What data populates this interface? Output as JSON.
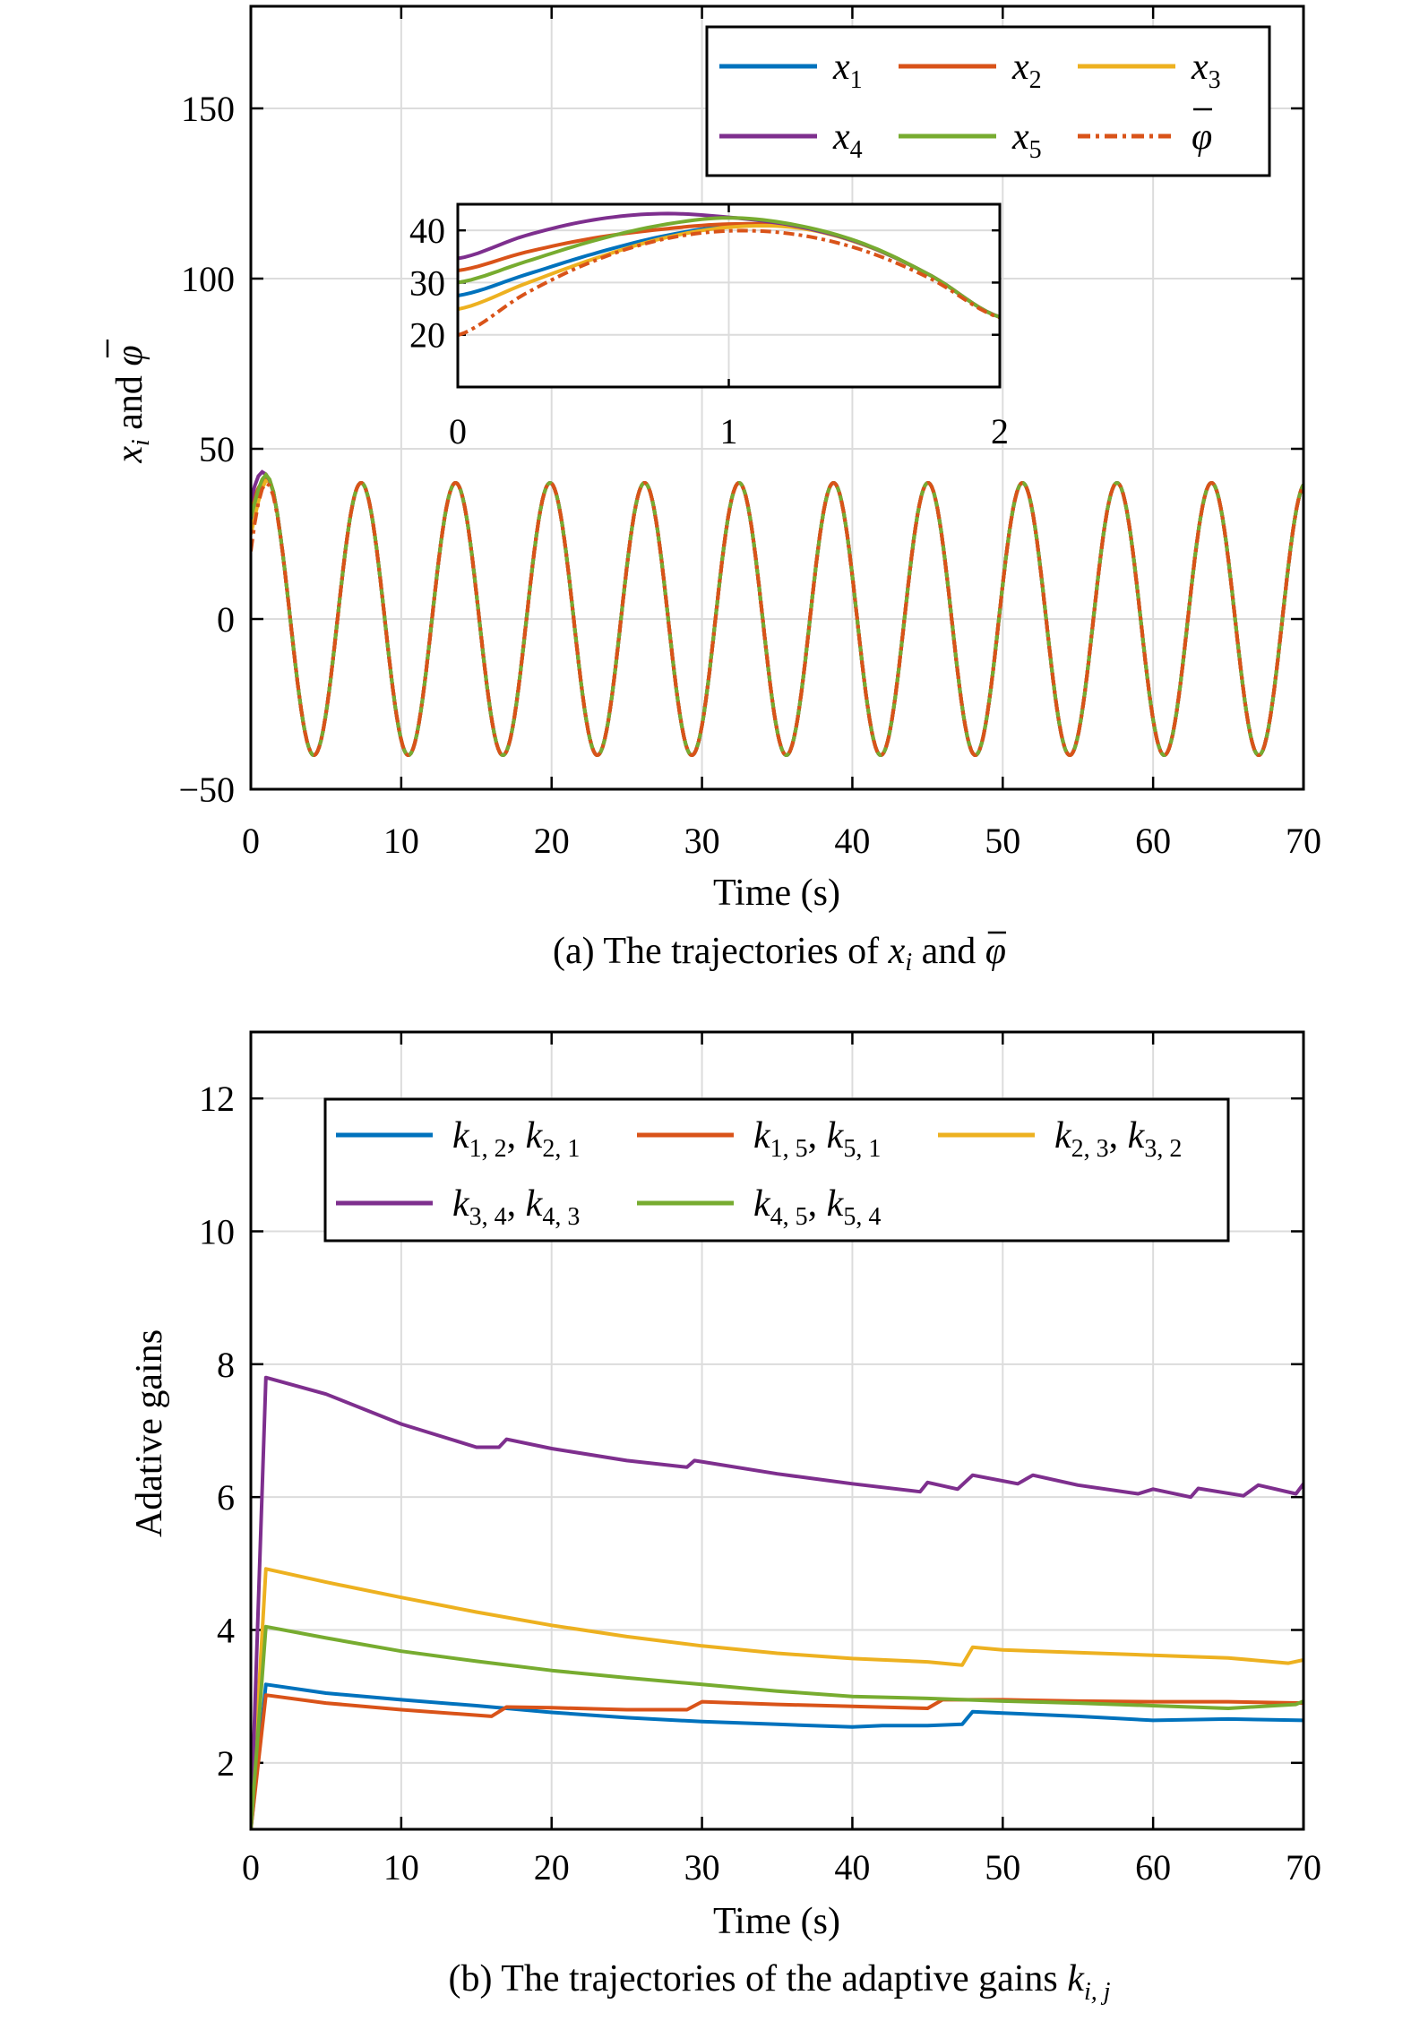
{
  "chart_data": [
    {
      "type": "line",
      "id": "a",
      "xlabel": "Time (s)",
      "ylabel": {
        "base": "x",
        "sub": "i",
        "mid": " and ",
        "phi": "φ"
      },
      "caption": {
        "pre": "(a) The trajectories of ",
        "base": "x",
        "sub": "i",
        "mid": " and ",
        "phi": "φ"
      },
      "xlim": [
        0,
        70
      ],
      "ylim": [
        -50,
        180
      ],
      "xticks": [
        0,
        10,
        20,
        30,
        40,
        50,
        60,
        70
      ],
      "yticks": [
        -50,
        0,
        50,
        100,
        150
      ],
      "xtick_labels": [
        "0",
        "10",
        "20",
        "30",
        "40",
        "50",
        "60",
        "70"
      ],
      "ytick_labels": [
        "−50",
        "0",
        "50",
        "100",
        "150"
      ],
      "grid": true,
      "legend_placement": "top-right",
      "steady_state": {
        "description": "all series coincide with a sinusoid after t≈2 s",
        "amplitude": 40,
        "angular_frequency": 1,
        "phase": 0.52
      },
      "early_t": [
        0,
        0.25,
        0.5,
        0.75,
        1,
        1.25,
        1.5,
        1.75,
        2
      ],
      "series": [
        {
          "name": {
            "base": "x",
            "sub": "1"
          },
          "color": "#0072BD",
          "style": "solid",
          "early_values": [
            27.5,
            31.5,
            35.5,
            38.8,
            40.8,
            40.6,
            37.2,
            31.2,
            23.4
          ]
        },
        {
          "name": {
            "base": "x",
            "sub": "2"
          },
          "color": "#D95319",
          "style": "solid",
          "early_values": [
            32.3,
            35.8,
            38.5,
            40.2,
            41.2,
            40.7,
            37.3,
            31.2,
            23.4
          ]
        },
        {
          "name": {
            "base": "x",
            "sub": "3"
          },
          "color": "#EDB120",
          "style": "solid",
          "early_values": [
            24.9,
            29.8,
            34.5,
            38.4,
            40.6,
            40.5,
            37.2,
            31.2,
            23.4
          ]
        },
        {
          "name": {
            "base": "x",
            "sub": "4"
          },
          "color": "#7E2F8E",
          "style": "solid",
          "early_values": [
            34.6,
            39.0,
            42.0,
            43.2,
            42.5,
            40.8,
            37.3,
            31.2,
            23.4
          ]
        },
        {
          "name": {
            "base": "x",
            "sub": "5"
          },
          "color": "#77AC30",
          "style": "solid",
          "early_values": [
            30.0,
            34.0,
            38.0,
            41.0,
            42.4,
            41.0,
            37.4,
            31.2,
            23.4
          ]
        },
        {
          "name": {
            "base": "φ",
            "sub": ""
          },
          "color": "#D95319",
          "style": "dashdot",
          "early_values": [
            19.9,
            27.9,
            34.1,
            38.2,
            39.9,
            39.2,
            36.1,
            30.6,
            23.3
          ]
        }
      ],
      "inset": {
        "xlim": [
          0,
          2
        ],
        "ylim": [
          10,
          45
        ],
        "xticks": [
          0,
          1,
          2
        ],
        "yticks": [
          20,
          30,
          40
        ],
        "xtick_labels": [
          "0",
          "1",
          "2"
        ],
        "ytick_labels": [
          "20",
          "30",
          "40"
        ]
      }
    },
    {
      "type": "line",
      "id": "b",
      "xlabel": "Time (s)",
      "ylabel": "Adative gains",
      "caption": {
        "pre": "(b) The trajectories of the adaptive gains ",
        "base": "k",
        "sub": "i, j"
      },
      "xlim": [
        0,
        70
      ],
      "ylim": [
        1,
        13
      ],
      "xticks": [
        0,
        10,
        20,
        30,
        40,
        50,
        60,
        70
      ],
      "yticks": [
        2,
        4,
        6,
        8,
        10,
        12
      ],
      "xtick_labels": [
        "0",
        "10",
        "20",
        "30",
        "40",
        "50",
        "60",
        "70"
      ],
      "ytick_labels": [
        "2",
        "4",
        "6",
        "8",
        "10",
        "12"
      ],
      "grid": true,
      "legend_placement": "top",
      "series": [
        {
          "name": {
            "a": "k",
            "as": "1, 2",
            "b": "k",
            "bs": "2, 1"
          },
          "color": "#0072BD",
          "x": [
            0,
            1,
            5,
            10,
            15,
            20,
            25,
            30,
            35,
            40,
            42,
            45,
            47.3,
            48,
            50,
            55,
            60,
            65,
            70
          ],
          "y": [
            1,
            3.18,
            3.05,
            2.95,
            2.86,
            2.76,
            2.68,
            2.62,
            2.58,
            2.54,
            2.56,
            2.56,
            2.58,
            2.77,
            2.75,
            2.7,
            2.64,
            2.66,
            2.64
          ]
        },
        {
          "name": {
            "a": "k",
            "as": "1, 5",
            "b": "k",
            "bs": "5, 1"
          },
          "color": "#D95319",
          "x": [
            0,
            1,
            5,
            10,
            16,
            17,
            20,
            25,
            29,
            30,
            35,
            40,
            45,
            46,
            50,
            55,
            60,
            65,
            70
          ],
          "y": [
            1,
            3.02,
            2.9,
            2.8,
            2.7,
            2.84,
            2.83,
            2.8,
            2.8,
            2.92,
            2.88,
            2.85,
            2.82,
            2.95,
            2.95,
            2.93,
            2.92,
            2.92,
            2.9
          ]
        },
        {
          "name": {
            "a": "k",
            "as": "2, 3",
            "b": "k",
            "bs": "3, 2"
          },
          "color": "#EDB120",
          "x": [
            0,
            1,
            5,
            10,
            15,
            20,
            25,
            30,
            35,
            40,
            45,
            47.3,
            48,
            50,
            55,
            60,
            65,
            69,
            70
          ],
          "y": [
            1,
            4.92,
            4.72,
            4.49,
            4.27,
            4.07,
            3.9,
            3.76,
            3.65,
            3.57,
            3.52,
            3.47,
            3.74,
            3.7,
            3.66,
            3.62,
            3.58,
            3.5,
            3.55
          ]
        },
        {
          "name": {
            "a": "k",
            "as": "3, 4",
            "b": "k",
            "bs": "4, 3"
          },
          "color": "#7E2F8E",
          "x": [
            0,
            1,
            5,
            10,
            15,
            16.5,
            17,
            20,
            25,
            29,
            29.5,
            35,
            40,
            44.5,
            45,
            47,
            48,
            51,
            52,
            55,
            59,
            60,
            62.5,
            63,
            66,
            67,
            69.5,
            70
          ],
          "y": [
            1,
            7.8,
            7.55,
            7.1,
            6.75,
            6.75,
            6.87,
            6.73,
            6.55,
            6.45,
            6.55,
            6.35,
            6.2,
            6.08,
            6.22,
            6.12,
            6.33,
            6.2,
            6.33,
            6.18,
            6.05,
            6.12,
            6.0,
            6.13,
            6.02,
            6.18,
            6.05,
            6.2
          ]
        },
        {
          "name": {
            "a": "k",
            "as": "4, 5",
            "b": "k",
            "bs": "5, 4"
          },
          "color": "#77AC30",
          "x": [
            0,
            1,
            5,
            10,
            15,
            20,
            25,
            30,
            35,
            40,
            45,
            50,
            55,
            60,
            65,
            69.5,
            70
          ],
          "y": [
            1,
            4.05,
            3.88,
            3.68,
            3.53,
            3.39,
            3.28,
            3.18,
            3.08,
            3.0,
            2.97,
            2.93,
            2.9,
            2.86,
            2.82,
            2.88,
            2.93
          ]
        }
      ]
    }
  ]
}
